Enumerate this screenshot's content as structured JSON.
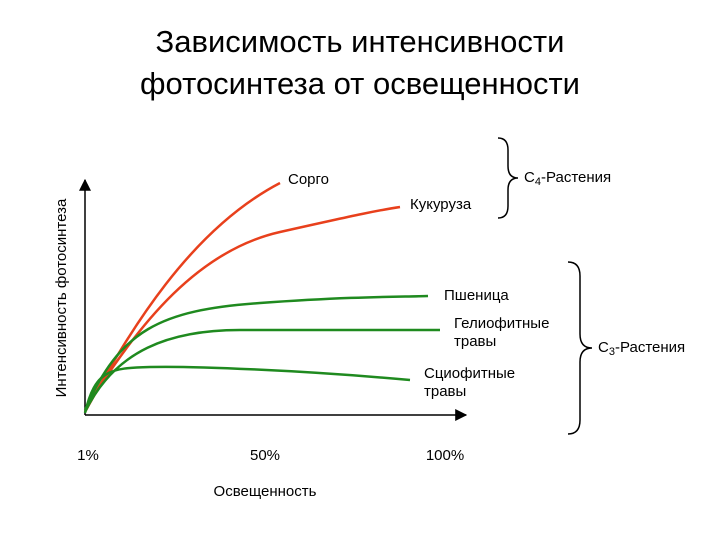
{
  "title": [
    "Зависимость интенсивности",
    "фотосинтеза от освещенности"
  ],
  "y_axis_label": "Интенсивность фотосинтеза",
  "x_axis_label": "Освещенность",
  "x_ticks": [
    "1%",
    "50%",
    "100%"
  ],
  "curves": [
    {
      "label": [
        "Сорго"
      ]
    },
    {
      "label": [
        "Кукуруза"
      ]
    },
    {
      "label": [
        "Пшеница"
      ]
    },
    {
      "label": [
        "Гелиофитные",
        "травы"
      ]
    },
    {
      "label": [
        "Сциофитные",
        "травы"
      ]
    }
  ],
  "groups": [
    {
      "letter": "C",
      "subscript": "4",
      "rest": "-Растения"
    },
    {
      "letter": "C",
      "subscript": "3",
      "rest": "-Растения"
    }
  ]
}
